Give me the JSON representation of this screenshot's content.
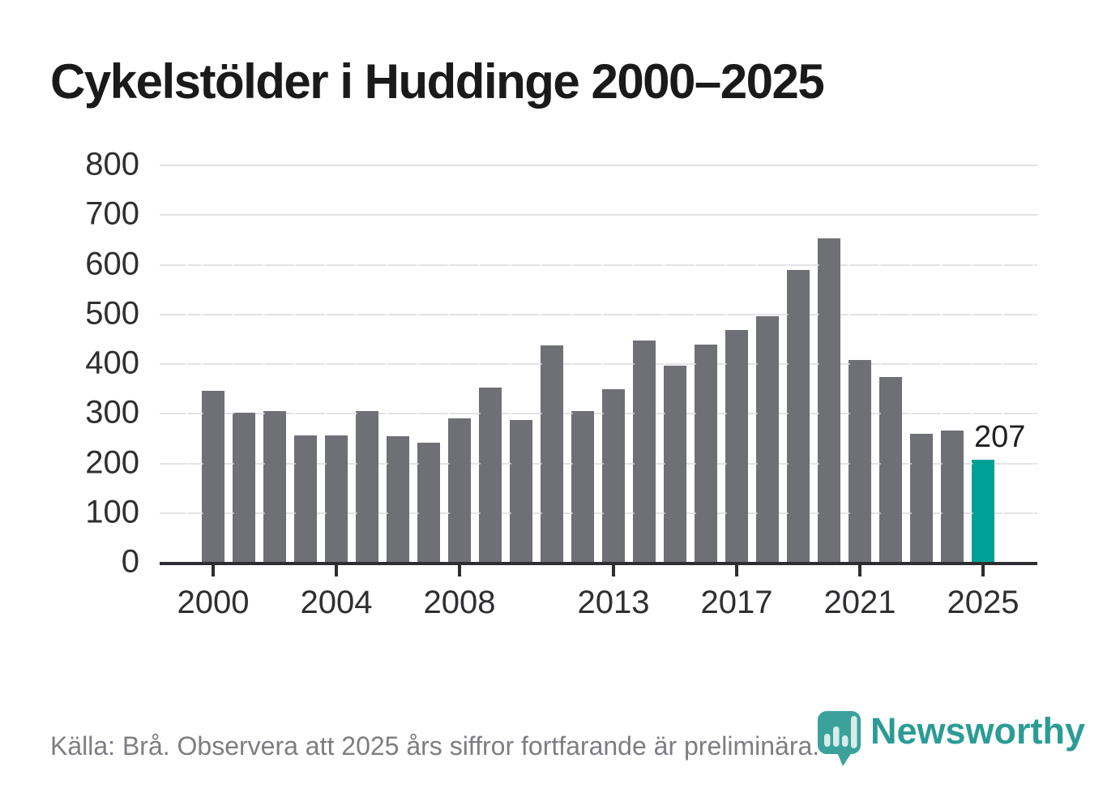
{
  "title": "Cykelstölder i Huddinge 2000–2025",
  "source_note": "Källa: Brå. Observera att 2025 års siffror fortfarande är preliminära.",
  "logo": {
    "text": "Newsworthy",
    "icon": "newsworthy-chart-bubble-icon"
  },
  "annotation": {
    "value_label": "207",
    "year": 2025
  },
  "colors": {
    "bar": "#6f6f76",
    "highlight": "#00a096",
    "axis": "#2d2d32",
    "grid": "#e3e3e5",
    "title": "#1a1a1a",
    "tick_label": "#2e2e33",
    "source": "#7d7d83",
    "logo": "#2b9c95",
    "logo_icon": "#3aa29b"
  },
  "chart_data": {
    "type": "bar",
    "title": "Cykelstölder i Huddinge 2000–2025",
    "xlabel": "",
    "ylabel": "",
    "x": [
      2000,
      2001,
      2002,
      2003,
      2004,
      2005,
      2006,
      2007,
      2008,
      2009,
      2010,
      2011,
      2012,
      2013,
      2014,
      2015,
      2016,
      2017,
      2018,
      2019,
      2020,
      2021,
      2022,
      2023,
      2024,
      2025
    ],
    "values": [
      346,
      302,
      305,
      256,
      257,
      306,
      255,
      241,
      291,
      353,
      287,
      438,
      306,
      350,
      447,
      396,
      439,
      468,
      497,
      590,
      653,
      408,
      374,
      259,
      266,
      207
    ],
    "highlight_x": 2025,
    "annotated_value": 207,
    "ylim": [
      0,
      800
    ],
    "yticks": [
      0,
      100,
      200,
      300,
      400,
      500,
      600,
      700,
      800
    ],
    "xticks": [
      2000,
      2004,
      2008,
      2013,
      2017,
      2021,
      2025
    ],
    "grid": true,
    "legend": false
  }
}
